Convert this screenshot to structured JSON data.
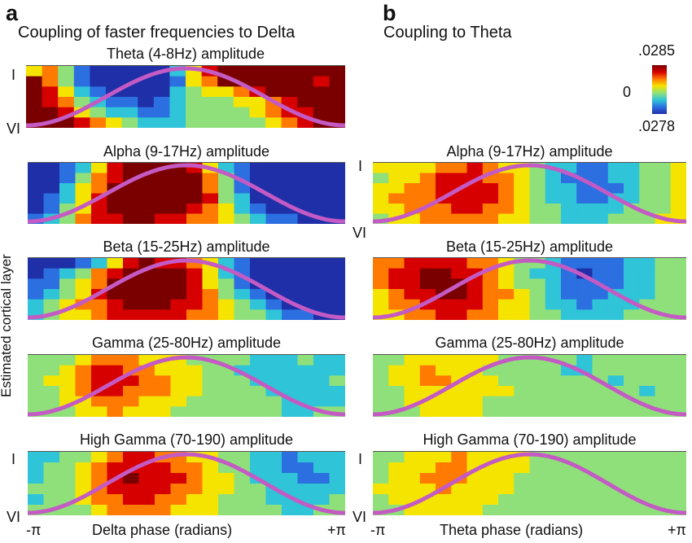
{
  "panels": {
    "a": {
      "letter": "a",
      "title": "Coupling of faster frequencies to Delta",
      "xlabel": "Delta phase (radians)",
      "x_ticks": [
        "-π",
        "+π"
      ],
      "layer_top": "I",
      "layer_bottom": "VI",
      "ylabel": "Estimated cortical layer"
    },
    "b": {
      "letter": "b",
      "title": "Coupling to Theta",
      "xlabel": "Theta phase (radians)",
      "x_ticks": [
        "-π",
        "+π"
      ],
      "layer_top": "I",
      "layer_bottom": "VI"
    }
  },
  "colorbar": {
    "max_label": ".0285",
    "mid_label": "0",
    "min_label": ".0278",
    "colors": [
      "#7a0000",
      "#d70000",
      "#ff7a00",
      "#f5e400",
      "#8fe07a",
      "#2fc4d8",
      "#2b6fe0",
      "#1f2fa8"
    ]
  },
  "chart_data": [
    {
      "type": "heatmap",
      "panel": "a",
      "title": "Theta (4-8Hz) amplitude",
      "x_range": [
        "-π",
        "+π"
      ],
      "y_range": [
        "I",
        "VI"
      ],
      "rows": [
        [
          4,
          5,
          3,
          1,
          0,
          0,
          0,
          0,
          0,
          2,
          4,
          6,
          7,
          7,
          7,
          7,
          7,
          7,
          7,
          7
        ],
        [
          7,
          5,
          3,
          1,
          0,
          0,
          0,
          0,
          0,
          1,
          4,
          5,
          7,
          7,
          7,
          7,
          7,
          7,
          6,
          7
        ],
        [
          7,
          6,
          4,
          2,
          1,
          0,
          0,
          0,
          0,
          2,
          3,
          4,
          4,
          5,
          6,
          7,
          7,
          7,
          7,
          7
        ],
        [
          7,
          6,
          5,
          3,
          2,
          1,
          1,
          0,
          1,
          2,
          3,
          3,
          3,
          4,
          4,
          5,
          6,
          7,
          7,
          7
        ],
        [
          7,
          7,
          6,
          4,
          3,
          2,
          2,
          1,
          1,
          2,
          3,
          3,
          3,
          3,
          4,
          5,
          6,
          6,
          7,
          7
        ],
        [
          7,
          7,
          7,
          6,
          5,
          4,
          3,
          2,
          2,
          2,
          3,
          3,
          3,
          3,
          3,
          4,
          5,
          6,
          7,
          7
        ]
      ]
    },
    {
      "type": "heatmap",
      "panel": "a",
      "title": "Alpha (9-17Hz) amplitude",
      "x_range": [
        "-π",
        "+π"
      ],
      "y_range": [
        "I",
        "VI"
      ],
      "rows": [
        [
          0,
          0,
          1,
          2,
          4,
          6,
          7,
          7,
          7,
          7,
          6,
          4,
          2,
          1,
          0,
          0,
          0,
          0,
          0,
          0
        ],
        [
          0,
          0,
          1,
          3,
          5,
          6,
          7,
          7,
          7,
          7,
          7,
          5,
          3,
          1,
          0,
          0,
          0,
          0,
          0,
          0
        ],
        [
          0,
          0,
          2,
          4,
          5,
          7,
          7,
          7,
          7,
          7,
          7,
          5,
          3,
          1,
          0,
          0,
          0,
          0,
          0,
          0
        ],
        [
          0,
          1,
          2,
          4,
          6,
          7,
          7,
          7,
          7,
          7,
          7,
          6,
          3,
          2,
          0,
          0,
          0,
          0,
          0,
          0
        ],
        [
          0,
          1,
          3,
          4,
          6,
          7,
          7,
          7,
          7,
          7,
          6,
          5,
          4,
          2,
          1,
          0,
          0,
          0,
          0,
          0
        ],
        [
          1,
          2,
          3,
          5,
          6,
          6,
          7,
          7,
          6,
          6,
          5,
          5,
          4,
          3,
          2,
          1,
          1,
          0,
          0,
          0
        ]
      ]
    },
    {
      "type": "heatmap",
      "panel": "a",
      "title": "Beta (15-25Hz) amplitude",
      "x_range": [
        "-π",
        "+π"
      ],
      "y_range": [
        "I",
        "VI"
      ],
      "rows": [
        [
          0,
          0,
          0,
          1,
          2,
          4,
          6,
          7,
          6,
          6,
          5,
          4,
          2,
          1,
          0,
          0,
          0,
          0,
          0,
          0
        ],
        [
          0,
          1,
          2,
          3,
          5,
          6,
          7,
          7,
          7,
          7,
          6,
          4,
          2,
          1,
          0,
          0,
          0,
          0,
          0,
          0
        ],
        [
          1,
          1,
          3,
          4,
          5,
          7,
          7,
          7,
          7,
          7,
          6,
          4,
          3,
          1,
          0,
          0,
          0,
          0,
          0,
          0
        ],
        [
          1,
          2,
          3,
          4,
          6,
          7,
          7,
          7,
          7,
          7,
          6,
          5,
          3,
          2,
          1,
          0,
          0,
          0,
          0,
          0
        ],
        [
          2,
          3,
          4,
          5,
          5,
          6,
          7,
          7,
          7,
          6,
          6,
          5,
          4,
          3,
          2,
          1,
          0,
          0,
          0,
          0
        ],
        [
          2,
          3,
          4,
          4,
          5,
          6,
          6,
          6,
          6,
          6,
          5,
          5,
          4,
          3,
          3,
          2,
          1,
          1,
          0,
          0
        ]
      ]
    },
    {
      "type": "heatmap",
      "panel": "a",
      "title": "Gamma (25-80Hz) amplitude",
      "x_range": [
        "-π",
        "+π"
      ],
      "y_range": [
        "I",
        "VI"
      ],
      "rows": [
        [
          3,
          3,
          3,
          4,
          5,
          5,
          5,
          4,
          4,
          4,
          3,
          3,
          3,
          3,
          2,
          2,
          2,
          3,
          2,
          2
        ],
        [
          3,
          3,
          4,
          5,
          6,
          6,
          5,
          5,
          4,
          4,
          4,
          3,
          3,
          2,
          2,
          2,
          2,
          2,
          2,
          2
        ],
        [
          3,
          4,
          4,
          5,
          6,
          6,
          6,
          5,
          5,
          4,
          4,
          3,
          3,
          3,
          2,
          2,
          2,
          2,
          2,
          3
        ],
        [
          3,
          3,
          4,
          5,
          6,
          6,
          5,
          5,
          5,
          4,
          4,
          3,
          3,
          3,
          3,
          2,
          2,
          2,
          2,
          2
        ],
        [
          3,
          3,
          4,
          4,
          5,
          5,
          5,
          4,
          4,
          4,
          3,
          3,
          3,
          3,
          3,
          3,
          2,
          2,
          2,
          2
        ],
        [
          3,
          3,
          3,
          4,
          4,
          5,
          4,
          4,
          4,
          3,
          3,
          3,
          3,
          3,
          3,
          3,
          2,
          2,
          3,
          3
        ]
      ]
    },
    {
      "type": "heatmap",
      "panel": "a",
      "title": "High Gamma (70-190) amplitude",
      "x_range": [
        "-π",
        "+π"
      ],
      "y_range": [
        "I",
        "VI"
      ],
      "rows": [
        [
          2,
          2,
          3,
          3,
          4,
          5,
          6,
          6,
          5,
          5,
          4,
          4,
          3,
          3,
          2,
          2,
          1,
          2,
          2,
          2
        ],
        [
          2,
          3,
          3,
          4,
          5,
          6,
          6,
          6,
          6,
          5,
          5,
          4,
          3,
          3,
          2,
          2,
          1,
          1,
          2,
          2
        ],
        [
          2,
          3,
          3,
          4,
          5,
          6,
          7,
          6,
          6,
          6,
          5,
          4,
          4,
          3,
          2,
          2,
          2,
          1,
          1,
          2
        ],
        [
          3,
          3,
          3,
          4,
          5,
          6,
          6,
          6,
          6,
          5,
          5,
          4,
          4,
          3,
          3,
          2,
          2,
          2,
          2,
          2
        ],
        [
          2,
          3,
          3,
          4,
          5,
          5,
          6,
          6,
          5,
          5,
          4,
          4,
          3,
          3,
          3,
          2,
          2,
          2,
          2,
          3
        ],
        [
          3,
          3,
          3,
          3,
          4,
          5,
          5,
          5,
          5,
          4,
          4,
          4,
          3,
          3,
          3,
          3,
          2,
          2,
          3,
          3
        ]
      ]
    },
    {
      "type": "heatmap",
      "panel": "b",
      "title": "Alpha (9-17Hz) amplitude",
      "x_range": [
        "-π",
        "+π"
      ],
      "y_range": [
        "I",
        "VI"
      ],
      "rows": [
        [
          4,
          4,
          4,
          4,
          5,
          5,
          6,
          5,
          4,
          4,
          3,
          2,
          2,
          1,
          1,
          2,
          2,
          3,
          3,
          4
        ],
        [
          3,
          4,
          4,
          5,
          6,
          6,
          6,
          5,
          5,
          4,
          3,
          2,
          1,
          1,
          1,
          2,
          2,
          3,
          3,
          4
        ],
        [
          4,
          4,
          5,
          5,
          6,
          6,
          6,
          6,
          5,
          4,
          3,
          2,
          2,
          1,
          1,
          1,
          2,
          3,
          3,
          4
        ],
        [
          4,
          5,
          5,
          5,
          6,
          6,
          6,
          6,
          5,
          4,
          3,
          2,
          2,
          1,
          1,
          2,
          2,
          3,
          3,
          4
        ],
        [
          4,
          4,
          5,
          5,
          5,
          6,
          6,
          5,
          5,
          4,
          3,
          3,
          2,
          2,
          2,
          2,
          3,
          3,
          3,
          4
        ],
        [
          3,
          4,
          4,
          5,
          5,
          5,
          5,
          5,
          4,
          4,
          3,
          3,
          2,
          2,
          2,
          3,
          3,
          3,
          4,
          4
        ]
      ]
    },
    {
      "type": "heatmap",
      "panel": "b",
      "title": "Beta (15-25Hz) amplitude",
      "x_range": [
        "-π",
        "+π"
      ],
      "y_range": [
        "I",
        "VI"
      ],
      "rows": [
        [
          5,
          5,
          6,
          6,
          6,
          6,
          5,
          5,
          4,
          3,
          3,
          2,
          1,
          1,
          1,
          1,
          2,
          2,
          3,
          3
        ],
        [
          5,
          6,
          6,
          7,
          7,
          6,
          6,
          5,
          4,
          3,
          2,
          2,
          1,
          0,
          1,
          1,
          2,
          2,
          3,
          3
        ],
        [
          5,
          6,
          6,
          7,
          7,
          7,
          6,
          5,
          4,
          3,
          3,
          2,
          1,
          1,
          1,
          1,
          2,
          2,
          3,
          3
        ],
        [
          4,
          5,
          6,
          6,
          7,
          7,
          6,
          5,
          5,
          4,
          3,
          2,
          1,
          1,
          1,
          2,
          2,
          2,
          3,
          3
        ],
        [
          4,
          5,
          5,
          6,
          6,
          6,
          6,
          5,
          4,
          4,
          3,
          2,
          2,
          1,
          2,
          2,
          2,
          3,
          3,
          3
        ],
        [
          4,
          4,
          5,
          5,
          6,
          6,
          5,
          5,
          4,
          4,
          3,
          3,
          2,
          2,
          2,
          2,
          3,
          3,
          3,
          3
        ]
      ]
    },
    {
      "type": "heatmap",
      "panel": "b",
      "title": "Gamma (25-80Hz) amplitude",
      "x_range": [
        "-π",
        "+π"
      ],
      "y_range": [
        "I",
        "VI"
      ],
      "rows": [
        [
          3,
          3,
          4,
          4,
          4,
          4,
          4,
          4,
          3,
          3,
          3,
          3,
          3,
          2,
          3,
          3,
          3,
          3,
          3,
          3
        ],
        [
          3,
          4,
          4,
          5,
          4,
          4,
          4,
          3,
          3,
          3,
          3,
          3,
          2,
          2,
          3,
          3,
          3,
          3,
          3,
          3
        ],
        [
          3,
          4,
          4,
          5,
          5,
          4,
          4,
          4,
          3,
          3,
          3,
          3,
          3,
          3,
          3,
          2,
          3,
          3,
          3,
          3
        ],
        [
          3,
          3,
          4,
          4,
          4,
          4,
          4,
          4,
          4,
          3,
          3,
          3,
          3,
          3,
          3,
          3,
          3,
          2,
          3,
          3
        ],
        [
          3,
          3,
          4,
          4,
          4,
          4,
          4,
          3,
          3,
          3,
          3,
          3,
          3,
          3,
          3,
          3,
          3,
          3,
          3,
          3
        ],
        [
          3,
          3,
          3,
          4,
          4,
          4,
          4,
          3,
          3,
          3,
          3,
          3,
          3,
          3,
          3,
          3,
          3,
          3,
          3,
          3
        ]
      ]
    },
    {
      "type": "heatmap",
      "panel": "b",
      "title": "High Gamma (70-190) amplitude",
      "x_range": [
        "-π",
        "+π"
      ],
      "y_range": [
        "I",
        "VI"
      ],
      "rows": [
        [
          3,
          3,
          4,
          4,
          4,
          5,
          4,
          4,
          4,
          4,
          3,
          3,
          3,
          3,
          3,
          3,
          3,
          3,
          3,
          3
        ],
        [
          3,
          4,
          4,
          4,
          5,
          5,
          4,
          4,
          4,
          4,
          3,
          3,
          3,
          3,
          3,
          3,
          3,
          3,
          3,
          3
        ],
        [
          3,
          4,
          4,
          5,
          5,
          5,
          4,
          4,
          4,
          3,
          3,
          3,
          3,
          3,
          3,
          3,
          3,
          3,
          3,
          3
        ],
        [
          4,
          4,
          4,
          4,
          5,
          4,
          4,
          4,
          4,
          3,
          3,
          3,
          3,
          3,
          3,
          3,
          3,
          3,
          3,
          3
        ],
        [
          3,
          4,
          4,
          4,
          4,
          4,
          4,
          4,
          3,
          3,
          3,
          3,
          3,
          3,
          3,
          3,
          3,
          3,
          3,
          3
        ],
        [
          3,
          3,
          4,
          4,
          4,
          4,
          4,
          3,
          3,
          3,
          3,
          3,
          3,
          3,
          3,
          3,
          3,
          3,
          3,
          3
        ]
      ]
    }
  ]
}
